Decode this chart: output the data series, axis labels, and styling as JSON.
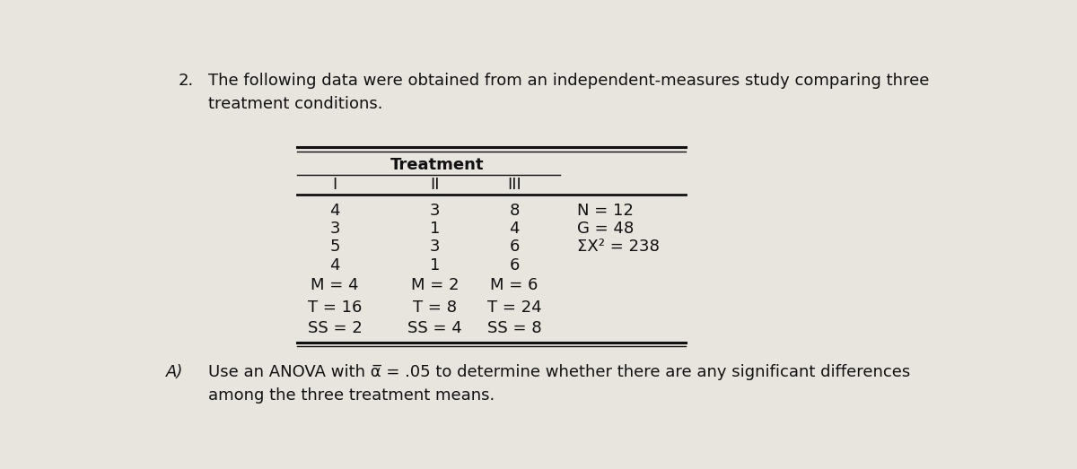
{
  "title_number": "2.",
  "title_text": "The following data were obtained from an independent-measures study comparing three\ntreatment conditions.",
  "table_header_span": "Treatment",
  "col_headers": [
    "I",
    "II",
    "III"
  ],
  "data_rows": [
    [
      "4",
      "3",
      "8",
      "N = 12"
    ],
    [
      "3",
      "1",
      "4",
      "G = 48"
    ],
    [
      "5",
      "3",
      "6",
      "ΣX² = 238"
    ],
    [
      "4",
      "1",
      "6",
      ""
    ]
  ],
  "summary_rows": [
    [
      "M = 4",
      "M = 2",
      "M = 6"
    ],
    [
      "T = 16",
      "T = 8",
      "T = 24"
    ],
    [
      "SS = 2",
      "SS = 4",
      "SS = 8"
    ]
  ],
  "part_a_label": "A)",
  "part_a_line1": "Use an ANOVA with α̅ = .05 to determine whether there are any significant differences",
  "part_a_line2": "among the three treatment means.",
  "bg_color": "#e8e4de",
  "paper_color": "#e8e4dc",
  "text_color": "#111111",
  "line_color": "#111111",
  "font_size": 13.0,
  "title_font_size": 13.0
}
